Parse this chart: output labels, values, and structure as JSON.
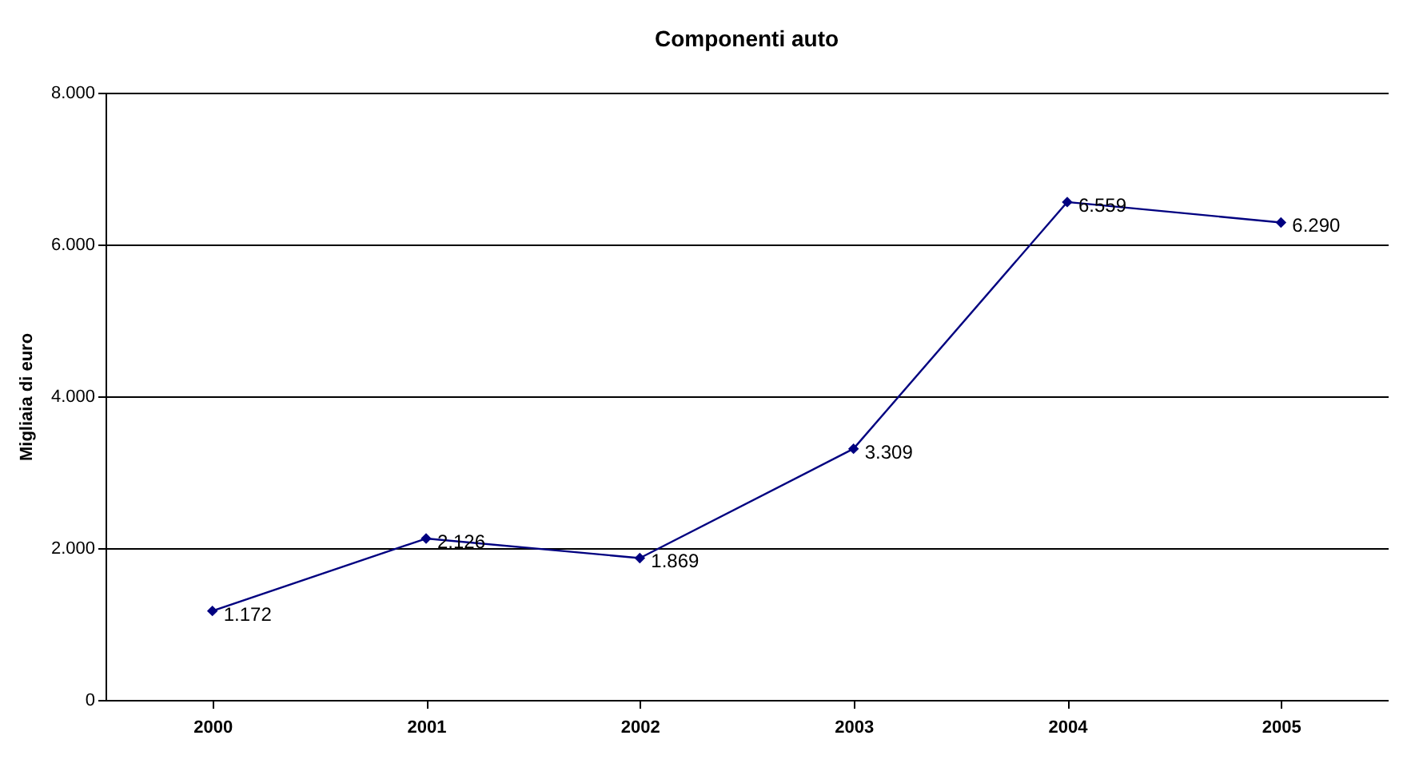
{
  "chart_data": {
    "type": "line",
    "title": "Componenti auto",
    "ylabel": "Migliaia di euro",
    "categories": [
      "2000",
      "2001",
      "2002",
      "2003",
      "2004",
      "2005"
    ],
    "series": [
      {
        "color": "#000080",
        "values": [
          1172,
          2126,
          1869,
          3309,
          6559,
          6290
        ],
        "value_labels": [
          "1.172",
          "2.126",
          "1.869",
          "3.309",
          "6.559",
          "6.290"
        ]
      }
    ],
    "ylim": [
      0,
      8000
    ],
    "yticks": [
      0,
      {
        "value": 2000,
        "label": "2.000"
      },
      {
        "value": 4000,
        "label": "4.000"
      },
      {
        "value": 6000,
        "label": "6.000"
      },
      {
        "value": 8000,
        "label": "8.000"
      }
    ],
    "grid": "y",
    "marker": "diamond",
    "line_style": "solid"
  }
}
